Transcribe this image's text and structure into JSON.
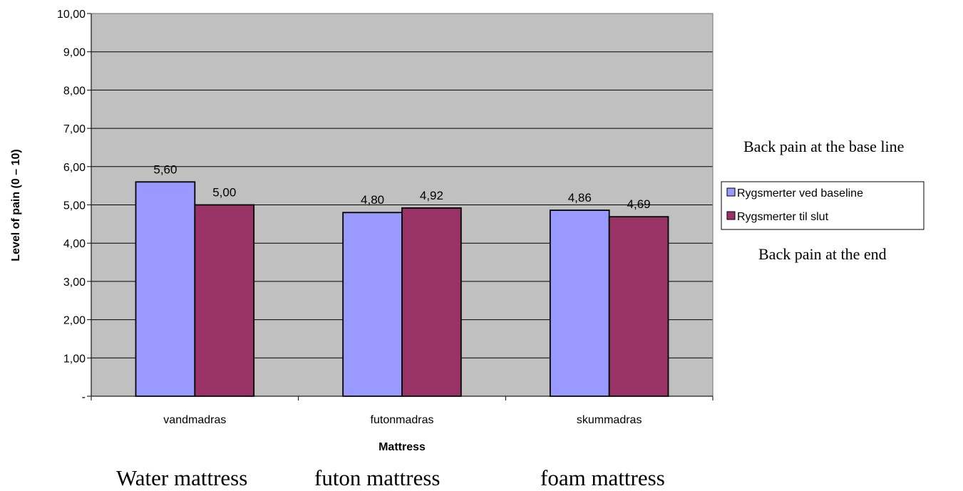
{
  "chart_data": {
    "type": "bar",
    "categories": [
      "vandmadras",
      "futonmadras",
      "skummadras"
    ],
    "series": [
      {
        "name": "Rygsmerter ved baseline",
        "values": [
          5.6,
          4.8,
          4.86
        ],
        "labels": [
          "5,60",
          "4,80",
          "4,86"
        ],
        "color": "#9999ff"
      },
      {
        "name": "Rygsmerter til slut",
        "values": [
          5.0,
          4.92,
          4.69
        ],
        "labels": [
          "5,00",
          "4,92",
          "4,69"
        ],
        "color": "#993366"
      }
    ],
    "xlabel": "Mattress",
    "ylabel": "Level of pain (0 – 10)",
    "ylim": [
      0,
      10
    ],
    "yticks": [
      0,
      1,
      2,
      3,
      4,
      5,
      6,
      7,
      8,
      9,
      10
    ],
    "ytick_labels": [
      "-",
      "1,00",
      "2,00",
      "3,00",
      "4,00",
      "5,00",
      "6,00",
      "7,00",
      "8,00",
      "9,00",
      "10,00"
    ],
    "grid": true,
    "plot_background": "#c0c0c0",
    "legend_position": "right"
  },
  "annotations": {
    "baseline_translation": "Back pain at the base line",
    "end_translation": "Back pain at the end"
  },
  "category_translations": [
    "Water mattress",
    "futon mattress",
    "foam mattress"
  ]
}
